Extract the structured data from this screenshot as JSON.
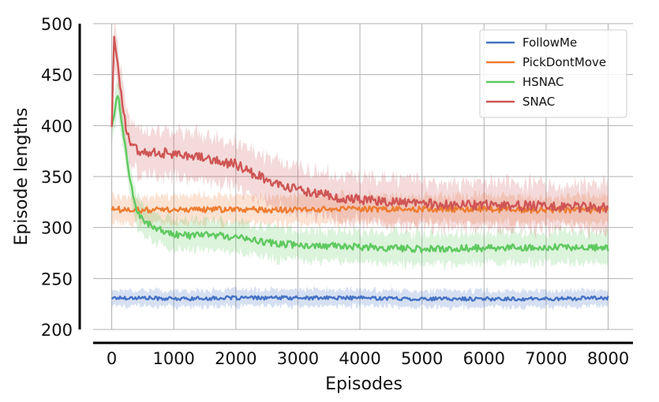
{
  "chart_data": {
    "type": "line",
    "xlabel": "Episodes",
    "ylabel": "Episode lengths",
    "xlim": [
      -300,
      8400
    ],
    "ylim": [
      200,
      500
    ],
    "x_ticks": [
      0,
      1000,
      2000,
      3000,
      4000,
      5000,
      6000,
      7000,
      8000
    ],
    "y_ticks": [
      200,
      250,
      300,
      350,
      400,
      450,
      500
    ],
    "grid": true,
    "legend_position": "top-right",
    "series": [
      {
        "name": "FollowMe",
        "color": "#4472c4",
        "x": [
          0,
          500,
          1000,
          2000,
          3000,
          4000,
          5000,
          6000,
          7000,
          8000
        ],
        "y": [
          231,
          231,
          230,
          231,
          231,
          231,
          230,
          230,
          230,
          231
        ],
        "band": 8
      },
      {
        "name": "PickDontMove",
        "color": "#ed7d31",
        "x": [
          0,
          500,
          1000,
          2000,
          3000,
          4000,
          5000,
          6000,
          7000,
          8000
        ],
        "y": [
          318,
          317,
          317,
          318,
          317,
          318,
          318,
          318,
          317,
          317
        ],
        "band": 13
      },
      {
        "name": "HSNAC",
        "color": "#5fc95f",
        "x": [
          0,
          60,
          100,
          150,
          200,
          300,
          400,
          600,
          900,
          1200,
          1500,
          2000,
          2500,
          3000,
          4000,
          5000,
          6000,
          7000,
          8000
        ],
        "y": [
          400,
          420,
          430,
          410,
          385,
          345,
          315,
          303,
          294,
          292,
          293,
          291,
          285,
          283,
          281,
          279,
          280,
          281,
          280
        ],
        "band": 15
      },
      {
        "name": "SNAC",
        "color": "#cf5555",
        "x": [
          0,
          40,
          80,
          150,
          250,
          400,
          700,
          1000,
          1500,
          2000,
          2500,
          3000,
          3500,
          4000,
          5000,
          6000,
          7000,
          8000
        ],
        "y": [
          400,
          490,
          470,
          430,
          390,
          376,
          374,
          372,
          368,
          362,
          346,
          337,
          331,
          327,
          323,
          322,
          321,
          319
        ],
        "band": 22
      }
    ]
  }
}
